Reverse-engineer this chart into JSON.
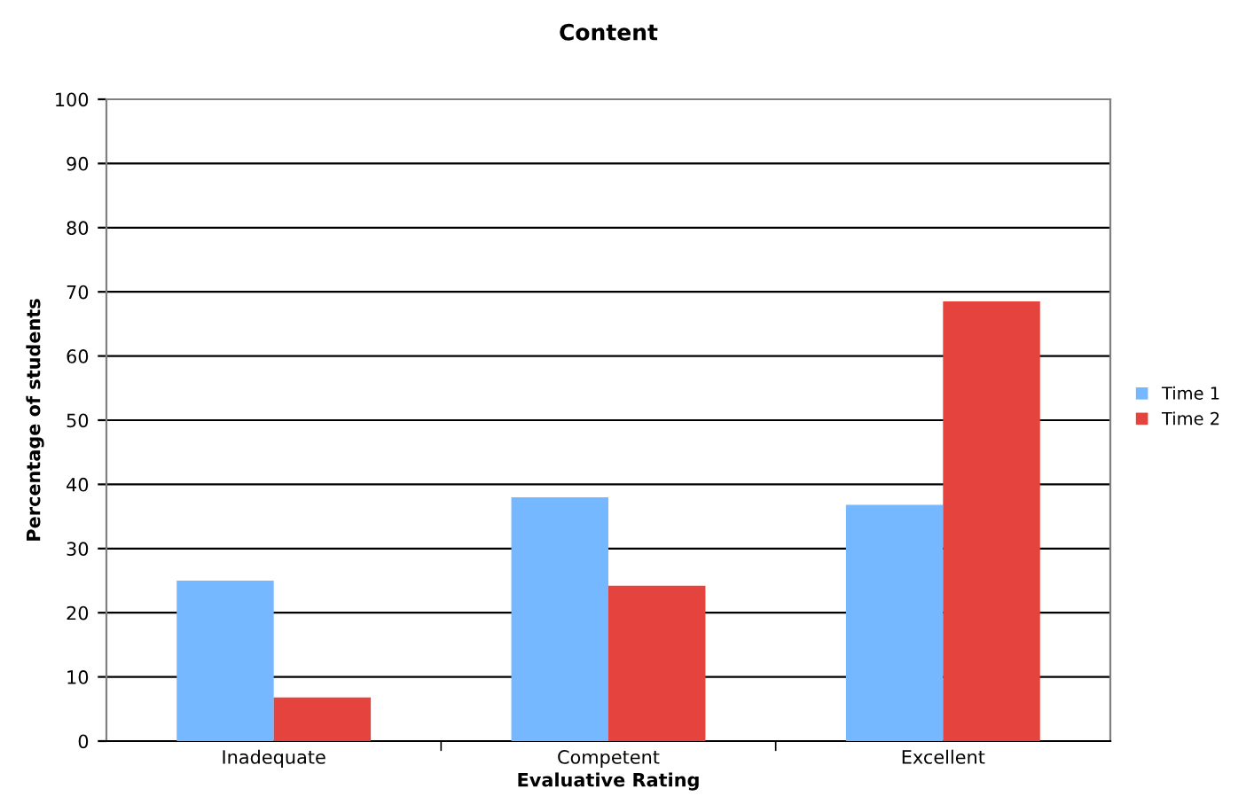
{
  "chart_data": {
    "type": "bar",
    "title": "Content",
    "xlabel": "Evaluative Rating",
    "ylabel": "Percentage of students",
    "categories": [
      "Inadequate",
      "Competent",
      "Excellent"
    ],
    "series": [
      {
        "name": "Time 1",
        "color": "#75b8ff",
        "values": [
          25,
          38,
          36.8
        ]
      },
      {
        "name": "Time 2",
        "color": "#e5433d",
        "values": [
          6.8,
          24.2,
          68.5
        ]
      }
    ],
    "ylim": [
      0,
      100
    ],
    "yticks": [
      0,
      10,
      20,
      30,
      40,
      50,
      60,
      70,
      80,
      90,
      100
    ],
    "grid": "y",
    "legend": "right"
  }
}
